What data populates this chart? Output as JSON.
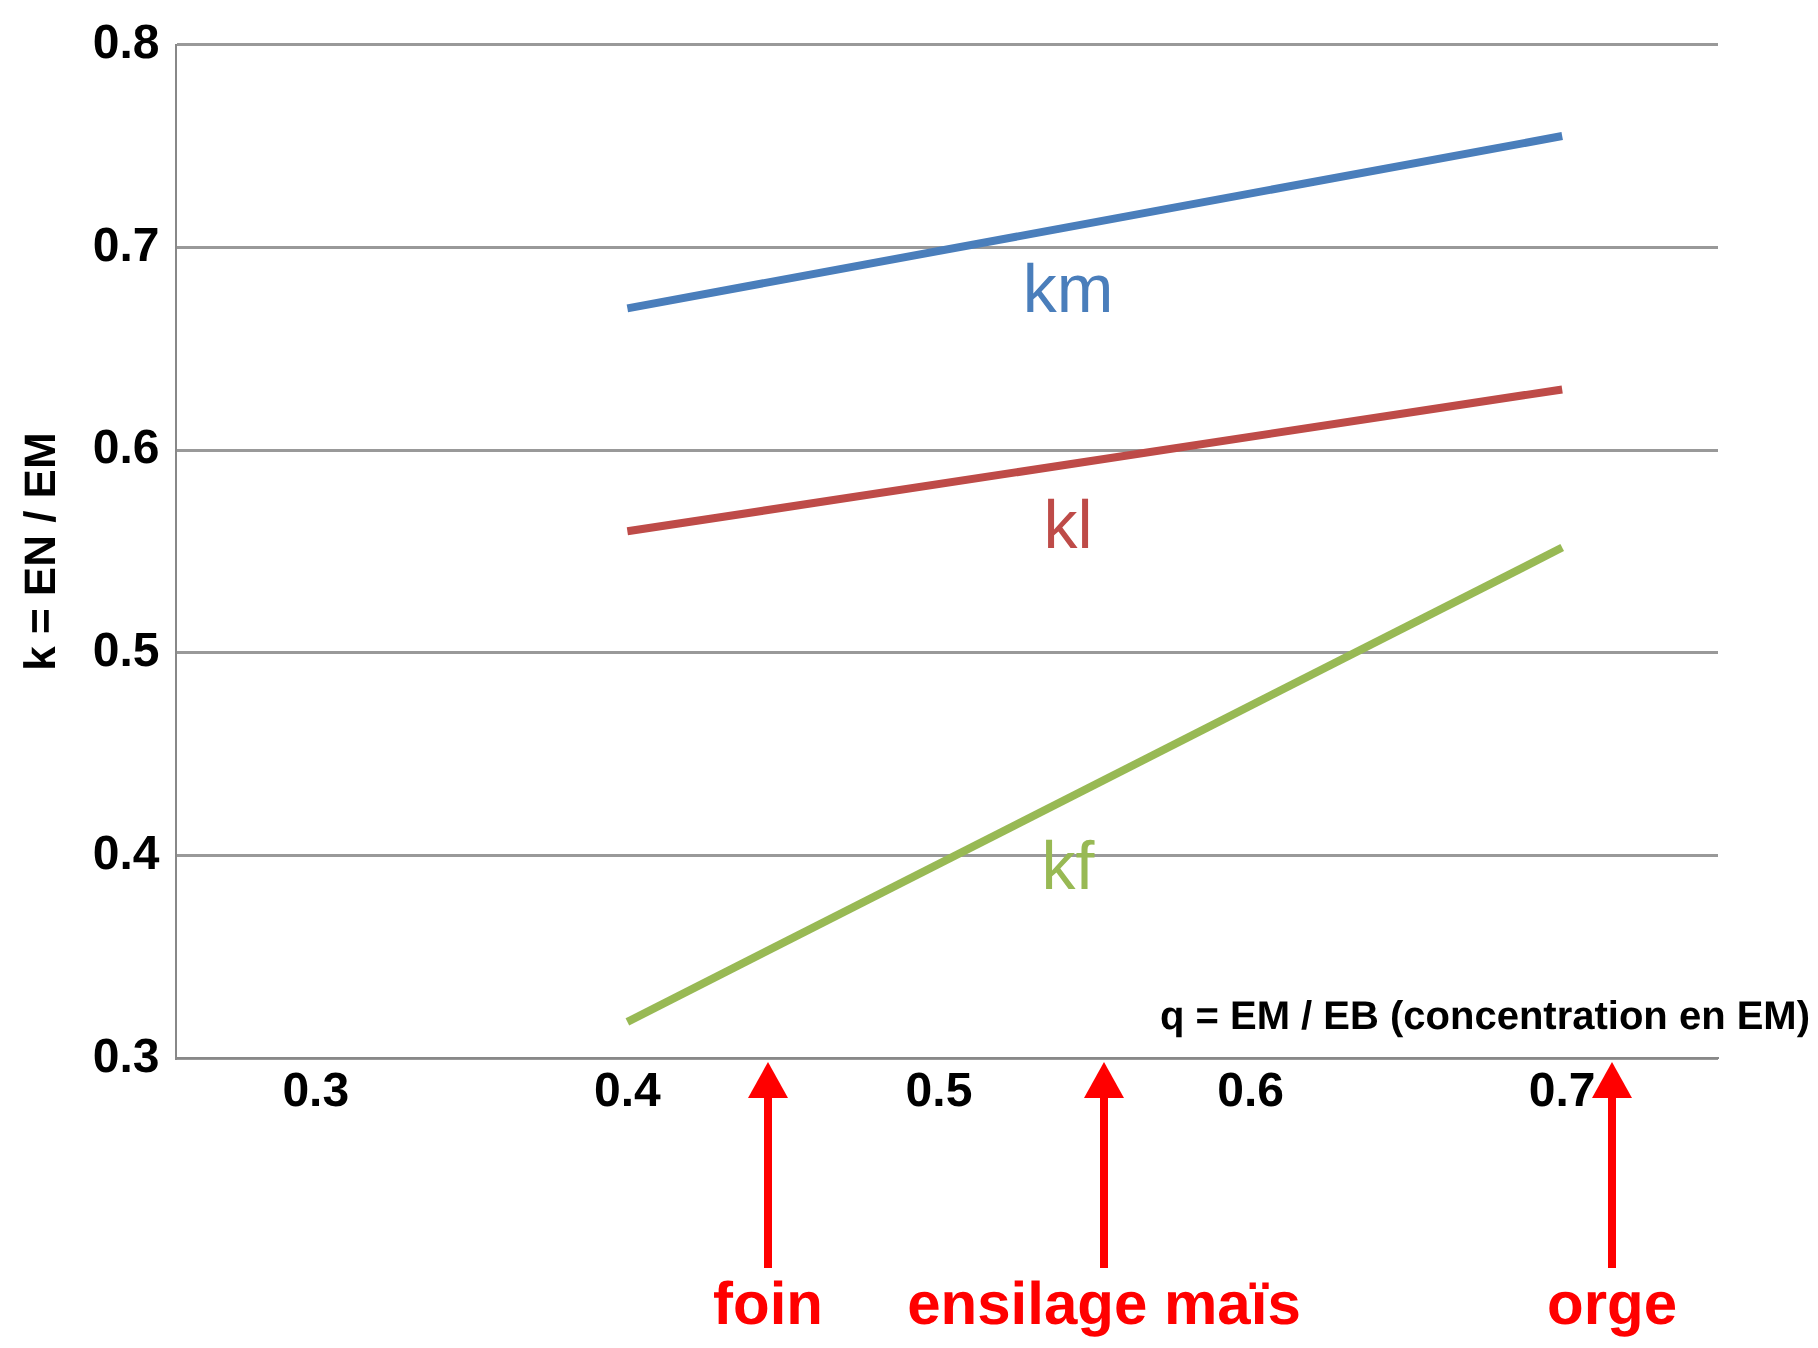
{
  "chart_data": {
    "type": "line",
    "ylabel": "k = EN / EM",
    "xlabel": "q = EM / EB (concentration en EM)",
    "xlim": [
      0.255,
      0.75
    ],
    "xticks": [
      0.3,
      0.4,
      0.5,
      0.6,
      0.7
    ],
    "ylim": [
      0.3,
      0.8
    ],
    "yticks": [
      0.3,
      0.4,
      0.5,
      0.6,
      0.7,
      0.8
    ],
    "grid": "y",
    "legend": false,
    "marker": "none",
    "line_style": "solid",
    "x": [
      0.4,
      0.7
    ],
    "series": [
      {
        "name": "km",
        "color": "#4a7ebb",
        "values": [
          0.67,
          0.755
        ]
      },
      {
        "name": "kl",
        "color": "#be4b48",
        "values": [
          0.56,
          0.63
        ]
      },
      {
        "name": "kf",
        "color": "#98b954",
        "values": [
          0.318,
          0.552
        ]
      }
    ],
    "annotations": [
      "foin",
      "ensilage maïs",
      "orge"
    ]
  }
}
